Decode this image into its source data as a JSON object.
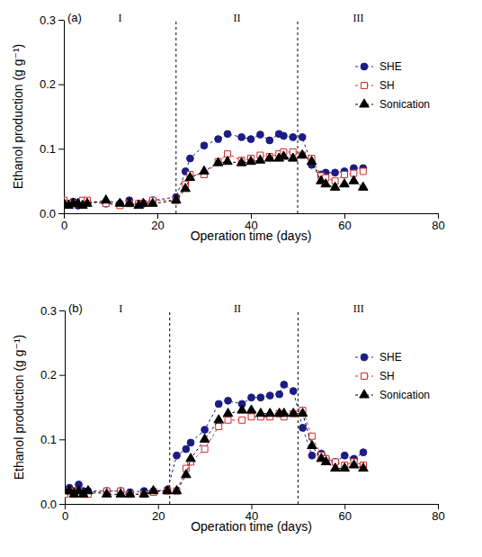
{
  "chart_data": [
    {
      "type": "line",
      "title": "(a)",
      "x_label": "Operation time (days)",
      "y_label": "Ethanol production (g g⁻¹)",
      "xlim": [
        0,
        80
      ],
      "xticks": [
        0,
        20,
        40,
        60,
        80
      ],
      "ylim": [
        0,
        0.3
      ],
      "yticks": [
        {
          "value": 0,
          "label": "0.0"
        },
        0.1,
        0.2,
        0.3
      ],
      "legend": "top-right",
      "phase_boundaries": [
        24,
        50
      ],
      "annotations": [
        {
          "text": "I",
          "x": 12
        },
        {
          "text": "II",
          "x": 37
        },
        {
          "text": "III",
          "x": 63
        }
      ],
      "x": [
        0,
        1,
        2,
        3,
        4,
        5,
        9,
        12,
        14,
        16,
        17,
        19,
        24,
        26,
        27,
        30,
        33,
        35,
        38,
        40,
        42,
        44,
        46,
        47,
        49,
        51,
        53,
        55,
        56,
        58,
        60,
        62,
        64
      ],
      "series": [
        {
          "name": "SHE",
          "color": "#1c1c84",
          "marker": "circle",
          "line_style": "dashed",
          "values": [
            0.015,
            0.015,
            0.018,
            0.012,
            0.015,
            0.018,
            0.015,
            0.015,
            0.02,
            0.015,
            0.015,
            0.02,
            0.025,
            0.065,
            0.085,
            0.105,
            0.115,
            0.123,
            0.118,
            0.115,
            0.122,
            0.113,
            0.123,
            0.12,
            0.118,
            0.118,
            0.075,
            0.06,
            0.063,
            0.063,
            0.065,
            0.07,
            0.07
          ]
        },
        {
          "name": "SH",
          "color": "#d42a2a",
          "marker": "open-square",
          "line_style": "dashed",
          "values": [
            0.02,
            0.015,
            0.015,
            0.015,
            0.02,
            0.02,
            0.015,
            0.012,
            0.015,
            0.015,
            0.015,
            0.02,
            0.02,
            0.045,
            0.06,
            0.06,
            0.08,
            0.092,
            0.082,
            0.085,
            0.09,
            0.088,
            0.092,
            0.095,
            0.095,
            0.09,
            0.085,
            0.058,
            0.055,
            0.05,
            0.06,
            0.062,
            0.065
          ]
        },
        {
          "name": "Sonication",
          "color": "#000000",
          "marker": "triangle",
          "line_style": "dashed",
          "values": [
            0.015,
            0.012,
            0.015,
            0.015,
            0.012,
            0.015,
            0.02,
            0.015,
            0.015,
            0.012,
            0.015,
            0.015,
            0.02,
            0.038,
            0.055,
            0.065,
            0.078,
            0.08,
            0.078,
            0.08,
            0.082,
            0.085,
            0.085,
            0.088,
            0.085,
            0.09,
            0.08,
            0.05,
            0.045,
            0.04,
            0.045,
            0.05,
            0.04
          ]
        }
      ]
    },
    {
      "type": "line",
      "title": "(b)",
      "x_label": "Operation time (days)",
      "y_label": "Ethanol production (g g⁻¹)",
      "xlim": [
        0,
        80
      ],
      "xticks": [
        0,
        20,
        40,
        60,
        80
      ],
      "ylim": [
        0,
        0.3
      ],
      "yticks": [
        {
          "value": 0,
          "label": "0.0"
        },
        0.1,
        0.2,
        0.3
      ],
      "legend": "top-right",
      "phase_boundaries": [
        22.5,
        50
      ],
      "annotations": [
        {
          "text": "I",
          "x": 12
        },
        {
          "text": "II",
          "x": 37
        },
        {
          "text": "III",
          "x": 63
        }
      ],
      "x": [
        0,
        1,
        2,
        3,
        4,
        5,
        9,
        12,
        14,
        17,
        19,
        22,
        24,
        26,
        27,
        30,
        33,
        35,
        38,
        40,
        42,
        44,
        46,
        47,
        49,
        51,
        53,
        55,
        56,
        58,
        60,
        62,
        64
      ],
      "series": [
        {
          "name": "SHE",
          "color": "#1c1c84",
          "marker": "circle",
          "line_style": "dashed",
          "values": [
            0.02,
            0.025,
            0.02,
            0.03,
            0.02,
            0.02,
            0.02,
            0.02,
            0.018,
            0.02,
            0.02,
            0.022,
            0.075,
            0.085,
            0.095,
            0.115,
            0.155,
            0.16,
            0.155,
            0.165,
            0.165,
            0.168,
            0.17,
            0.185,
            0.175,
            0.118,
            0.075,
            0.078,
            0.07,
            0.065,
            0.075,
            0.07,
            0.08
          ]
        },
        {
          "name": "SH",
          "color": "#d42a2a",
          "marker": "open-square",
          "line_style": "dashed",
          "values": [
            0.015,
            0.02,
            0.015,
            0.02,
            0.015,
            0.015,
            0.02,
            0.02,
            0.015,
            0.015,
            0.018,
            0.02,
            0.02,
            0.055,
            0.065,
            0.085,
            0.12,
            0.13,
            0.13,
            0.135,
            0.135,
            0.135,
            0.14,
            0.135,
            0.14,
            0.145,
            0.105,
            0.075,
            0.07,
            0.065,
            0.06,
            0.065,
            0.06
          ]
        },
        {
          "name": "Sonication",
          "color": "#000000",
          "marker": "triangle",
          "line_style": "dashed",
          "values": [
            0.02,
            0.02,
            0.015,
            0.02,
            0.015,
            0.02,
            0.015,
            0.015,
            0.015,
            0.015,
            0.02,
            0.02,
            0.02,
            0.045,
            0.07,
            0.1,
            0.13,
            0.14,
            0.145,
            0.145,
            0.14,
            0.14,
            0.14,
            0.14,
            0.14,
            0.14,
            0.09,
            0.07,
            0.065,
            0.055,
            0.055,
            0.06,
            0.055
          ]
        }
      ]
    }
  ]
}
